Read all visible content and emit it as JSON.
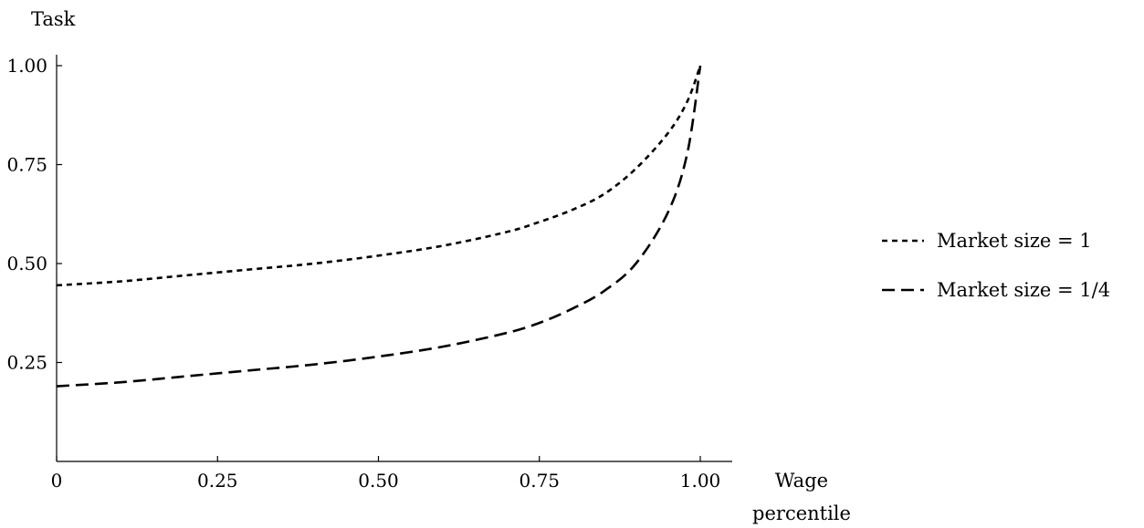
{
  "chart_data": {
    "type": "line",
    "title": "",
    "xlabel": "Wage percentile",
    "ylabel": "Task",
    "xlabel_lines": [
      "Wage",
      "percentile"
    ],
    "xlim": [
      0,
      1.05
    ],
    "ylim": [
      0,
      1.0
    ],
    "xticks": [
      0,
      0.25,
      0.5,
      0.75,
      1.0
    ],
    "xtick_labels": [
      "0",
      "0.25",
      "0.50",
      "0.75",
      "1.00"
    ],
    "yticks": [
      0.25,
      0.5,
      0.75,
      1.0
    ],
    "ytick_labels": [
      "0.25",
      "0.50",
      "0.75",
      "1.00"
    ],
    "grid": false,
    "legend_position": "right",
    "series": [
      {
        "name": "Market size = 1",
        "dash": "dotted",
        "x": [
          0,
          0.1,
          0.2,
          0.3,
          0.4,
          0.5,
          0.6,
          0.7,
          0.75,
          0.8,
          0.85,
          0.9,
          0.95,
          0.98,
          1.0
        ],
        "y": [
          0.445,
          0.455,
          0.47,
          0.485,
          0.5,
          0.52,
          0.545,
          0.58,
          0.605,
          0.635,
          0.675,
          0.74,
          0.83,
          0.91,
          1.0
        ]
      },
      {
        "name": "Market size = 1/4",
        "dash": "dashed",
        "x": [
          0,
          0.1,
          0.2,
          0.3,
          0.4,
          0.5,
          0.6,
          0.7,
          0.75,
          0.8,
          0.85,
          0.9,
          0.95,
          0.98,
          1.0
        ],
        "y": [
          0.19,
          0.2,
          0.215,
          0.23,
          0.245,
          0.265,
          0.29,
          0.325,
          0.35,
          0.385,
          0.43,
          0.5,
          0.63,
          0.78,
          1.0
        ]
      }
    ]
  }
}
